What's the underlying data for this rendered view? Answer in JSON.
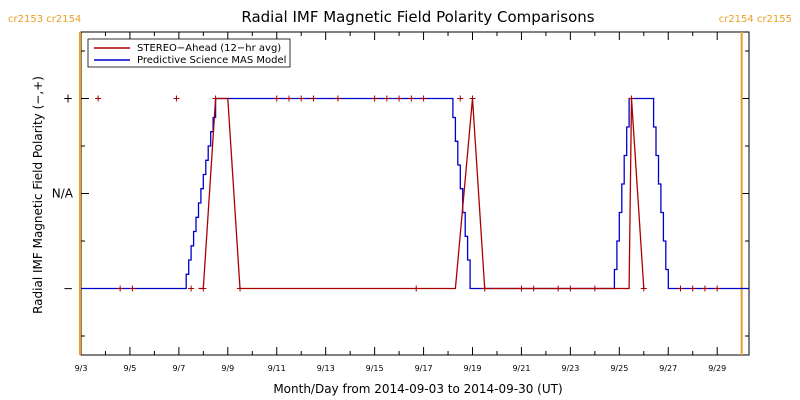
{
  "chart_data": {
    "type": "line",
    "title": "Radial IMF Magnetic Field Polarity Comparisons",
    "xlabel": "Month/Day from 2014-09-03 to 2014-09-30 (UT)",
    "ylabel": "Radial IMF Magnetic Field Polarity (−,+)",
    "xlim": [
      0,
      27.3
    ],
    "ylim": [
      -1.7,
      1.7
    ],
    "xticks": [
      {
        "x": 0,
        "label": "9/3"
      },
      {
        "x": 2,
        "label": "9/5"
      },
      {
        "x": 4,
        "label": "9/7"
      },
      {
        "x": 6,
        "label": "9/9"
      },
      {
        "x": 8,
        "label": "9/11"
      },
      {
        "x": 10,
        "label": "9/13"
      },
      {
        "x": 12,
        "label": "9/15"
      },
      {
        "x": 14,
        "label": "9/17"
      },
      {
        "x": 16,
        "label": "9/19"
      },
      {
        "x": 18,
        "label": "9/21"
      },
      {
        "x": 20,
        "label": "9/23"
      },
      {
        "x": 22,
        "label": "9/25"
      },
      {
        "x": 24,
        "label": "9/27"
      },
      {
        "x": 26,
        "label": "9/29"
      }
    ],
    "yticks": [
      {
        "y": 1,
        "label": "+"
      },
      {
        "y": 0,
        "label": "N/A"
      },
      {
        "y": -1,
        "label": "−"
      }
    ],
    "carrington": {
      "left": "cr2153  cr2154",
      "right": "cr2154  cr2155",
      "left_boundary_x": 0,
      "right_boundary_x": 27.0
    },
    "legend_position": "top-left",
    "series": [
      {
        "name": "STEREO−Ahead (12−hr avg)",
        "color": "#aa0000",
        "points": [
          [
            0.7,
            1
          ],
          [
            3.9,
            1
          ],
          [
            1.6,
            -1
          ],
          [
            2.1,
            -1
          ],
          [
            4.5,
            -1
          ],
          [
            5.0,
            -1
          ],
          [
            5.5,
            1
          ],
          [
            6.5,
            -1
          ],
          [
            8.0,
            1
          ],
          [
            8.5,
            1
          ],
          [
            9.0,
            1
          ],
          [
            9.5,
            1
          ],
          [
            10.5,
            1
          ],
          [
            12.0,
            1
          ],
          [
            12.5,
            1
          ],
          [
            13.0,
            1
          ],
          [
            13.5,
            1
          ],
          [
            14.0,
            1
          ],
          [
            13.7,
            -1
          ],
          [
            15.5,
            1
          ],
          [
            16.0,
            1
          ],
          [
            16.5,
            -1
          ],
          [
            18.0,
            -1
          ],
          [
            18.5,
            -1
          ],
          [
            19.5,
            -1
          ],
          [
            20.0,
            -1
          ],
          [
            21.0,
            -1
          ],
          [
            22.5,
            1
          ],
          [
            23.0,
            -1
          ],
          [
            24.5,
            -1
          ],
          [
            25.0,
            -1
          ],
          [
            25.5,
            -1
          ],
          [
            26.0,
            -1
          ]
        ],
        "line": [
          [
            4.8,
            -1
          ],
          [
            5.0,
            -1
          ],
          [
            5.5,
            1
          ],
          [
            6.0,
            1
          ],
          [
            6.5,
            -1
          ],
          [
            15.3,
            -1
          ],
          [
            16.0,
            1
          ],
          [
            16.5,
            -1
          ],
          [
            22.4,
            -1
          ],
          [
            22.5,
            1
          ],
          [
            23.0,
            -1
          ]
        ]
      },
      {
        "name": "Predictive Science MAS Model",
        "color": "#0000cc",
        "line": [
          [
            0,
            -1
          ],
          [
            4.3,
            -1
          ],
          [
            4.3,
            -0.85
          ],
          [
            4.4,
            -0.85
          ],
          [
            4.4,
            -0.7
          ],
          [
            4.5,
            -0.7
          ],
          [
            4.5,
            -0.55
          ],
          [
            4.6,
            -0.55
          ],
          [
            4.6,
            -0.4
          ],
          [
            4.7,
            -0.4
          ],
          [
            4.7,
            -0.25
          ],
          [
            4.8,
            -0.25
          ],
          [
            4.8,
            -0.1
          ],
          [
            4.9,
            -0.1
          ],
          [
            4.9,
            0.05
          ],
          [
            5.0,
            0.05
          ],
          [
            5.0,
            0.2
          ],
          [
            5.1,
            0.2
          ],
          [
            5.1,
            0.35
          ],
          [
            5.2,
            0.35
          ],
          [
            5.2,
            0.5
          ],
          [
            5.3,
            0.5
          ],
          [
            5.3,
            0.65
          ],
          [
            5.4,
            0.65
          ],
          [
            5.4,
            0.8
          ],
          [
            5.5,
            0.8
          ],
          [
            5.5,
            1
          ],
          [
            15.2,
            1
          ],
          [
            15.2,
            0.8
          ],
          [
            15.3,
            0.8
          ],
          [
            15.3,
            0.55
          ],
          [
            15.4,
            0.55
          ],
          [
            15.4,
            0.3
          ],
          [
            15.5,
            0.3
          ],
          [
            15.5,
            0.05
          ],
          [
            15.6,
            0.05
          ],
          [
            15.6,
            -0.2
          ],
          [
            15.7,
            -0.2
          ],
          [
            15.7,
            -0.45
          ],
          [
            15.8,
            -0.45
          ],
          [
            15.8,
            -0.7
          ],
          [
            15.9,
            -0.7
          ],
          [
            15.9,
            -1
          ],
          [
            21.8,
            -1
          ],
          [
            21.8,
            -0.8
          ],
          [
            21.9,
            -0.8
          ],
          [
            21.9,
            -0.5
          ],
          [
            22.0,
            -0.5
          ],
          [
            22.0,
            -0.2
          ],
          [
            22.1,
            -0.2
          ],
          [
            22.1,
            0.1
          ],
          [
            22.2,
            0.1
          ],
          [
            22.2,
            0.4
          ],
          [
            22.3,
            0.4
          ],
          [
            22.3,
            0.7
          ],
          [
            22.4,
            0.7
          ],
          [
            22.4,
            1
          ],
          [
            23.4,
            1
          ],
          [
            23.4,
            0.7
          ],
          [
            23.5,
            0.7
          ],
          [
            23.5,
            0.4
          ],
          [
            23.6,
            0.4
          ],
          [
            23.6,
            0.1
          ],
          [
            23.7,
            0.1
          ],
          [
            23.7,
            -0.2
          ],
          [
            23.8,
            -0.2
          ],
          [
            23.8,
            -0.5
          ],
          [
            23.9,
            -0.5
          ],
          [
            23.9,
            -0.8
          ],
          [
            24.0,
            -0.8
          ],
          [
            24.0,
            -1
          ],
          [
            27.3,
            -1
          ]
        ]
      }
    ]
  }
}
